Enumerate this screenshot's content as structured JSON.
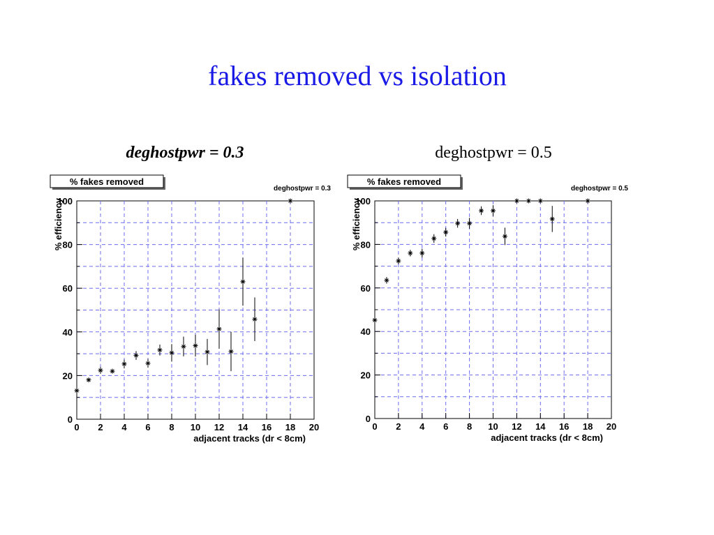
{
  "title": "fakes removed vs isolation",
  "chart_data": [
    {
      "type": "scatter",
      "heading": "deghostpwr = 0.3",
      "title": "% fakes removed",
      "label": "deghostpwr = 0.3",
      "x_label": "adjacent tracks (dr < 8cm)",
      "y_label": "% efficiency",
      "xlim": [
        0,
        20
      ],
      "xticks": [
        0,
        2,
        4,
        6,
        8,
        10,
        12,
        14,
        16,
        18,
        20
      ],
      "ylim": [
        0,
        100
      ],
      "yticks": [
        0,
        20,
        40,
        60,
        80,
        100
      ],
      "yminor": [
        10,
        30,
        50,
        70,
        90
      ],
      "grid": true,
      "color": "#000000",
      "x": [
        0,
        1,
        2,
        3,
        4,
        5,
        6,
        7,
        8,
        9,
        10,
        11,
        12,
        13,
        14,
        15,
        18
      ],
      "values": [
        13.1,
        18,
        22.4,
        22,
        25.3,
        29.2,
        25.6,
        31.7,
        30.4,
        33.3,
        33.7,
        30.8,
        41.3,
        31,
        63,
        45.8,
        100
      ],
      "errors": [
        1,
        1,
        1.5,
        1,
        2,
        2,
        2,
        2.5,
        4,
        4.5,
        5,
        6,
        9,
        9,
        11,
        10,
        0
      ]
    },
    {
      "type": "scatter",
      "heading": "deghostpwr = 0.5",
      "title": "% fakes removed",
      "label": "deghostpwr = 0.5",
      "x_label": "adjacent tracks (dr < 8cm)",
      "y_label": "% efficiency",
      "xlim": [
        0,
        20
      ],
      "xticks": [
        0,
        2,
        4,
        6,
        8,
        10,
        12,
        14,
        16,
        18,
        20
      ],
      "ylim": [
        0,
        100
      ],
      "yticks": [
        0,
        20,
        40,
        60,
        80,
        100
      ],
      "yminor": [
        10,
        30,
        50,
        70,
        90
      ],
      "grid": true,
      "color": "#000000",
      "x": [
        0,
        1,
        2,
        3,
        4,
        5,
        6,
        7,
        8,
        9,
        10,
        11,
        12,
        13,
        14,
        15,
        18
      ],
      "values": [
        45.2,
        63.5,
        72.4,
        76,
        76,
        82.7,
        85.6,
        89.7,
        89.7,
        95.5,
        95.5,
        83.7,
        100,
        100,
        100,
        91.7,
        100
      ],
      "errors": [
        1,
        1.5,
        1.5,
        1.5,
        2,
        2,
        2,
        2,
        2.5,
        2,
        2.5,
        4,
        0,
        0,
        0,
        6,
        0
      ]
    }
  ]
}
